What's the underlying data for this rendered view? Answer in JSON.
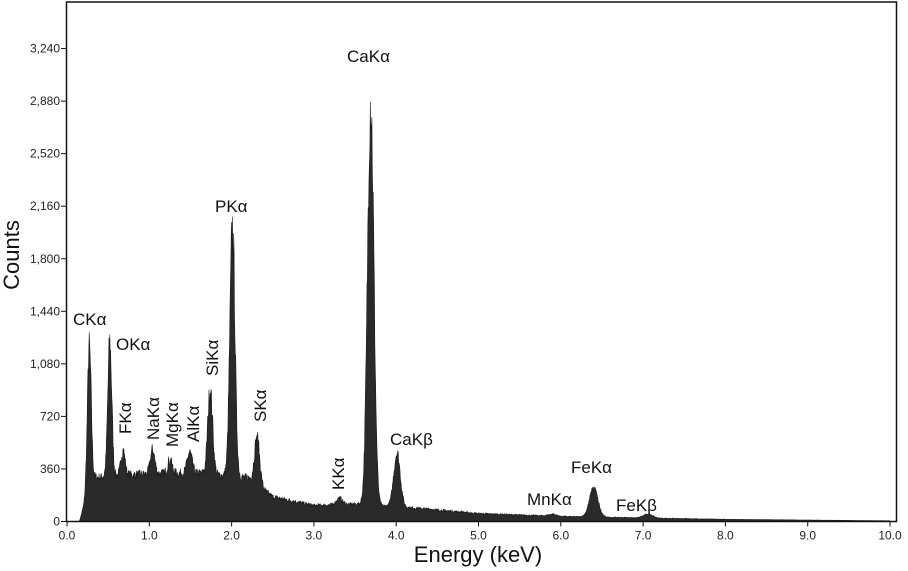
{
  "chart_data": {
    "type": "area",
    "title": "",
    "xlabel": "Energy (keV)",
    "ylabel": "Counts",
    "xlim": [
      0,
      10.08
    ],
    "ylim": [
      0,
      3560
    ],
    "x_ticks": [
      "0.0",
      "1.0",
      "2.0",
      "3.0",
      "4.0",
      "5.0",
      "6.0",
      "7.0",
      "8.0",
      "9.0",
      "10.0"
    ],
    "y_ticks": [
      "0",
      "360",
      "720",
      "1,080",
      "1,440",
      "1,800",
      "2,160",
      "2,520",
      "2,880",
      "3,240"
    ],
    "grid": false,
    "fill_color": "#2a2a2a",
    "peaks": [
      {
        "label": "CKα",
        "energy": 0.27,
        "counts": 1195
      },
      {
        "label": "OKα",
        "energy": 0.52,
        "counts": 1230
      },
      {
        "label": "FKα",
        "energy": 0.68,
        "counts": 490
      },
      {
        "label": "NaKα",
        "energy": 1.04,
        "counts": 490
      },
      {
        "label": "MgKα",
        "energy": 1.25,
        "counts": 420
      },
      {
        "label": "AlKα",
        "energy": 1.49,
        "counts": 475
      },
      {
        "label": "SiKα",
        "energy": 1.74,
        "counts": 900
      },
      {
        "label": "PKα",
        "energy": 2.01,
        "counts": 2000
      },
      {
        "label": "SKα",
        "energy": 2.31,
        "counts": 570
      },
      {
        "label": "KKα",
        "energy": 3.31,
        "counts": 160
      },
      {
        "label": "CaKα",
        "energy": 3.69,
        "counts": 2890
      },
      {
        "label": "CaKβ",
        "energy": 4.01,
        "counts": 470
      },
      {
        "label": "MnKα",
        "energy": 5.9,
        "counts": 50
      },
      {
        "label": "FeKα",
        "energy": 6.4,
        "counts": 230
      },
      {
        "label": "FeKβ",
        "energy": 7.06,
        "counts": 50
      }
    ],
    "background": {
      "energy": [
        0.15,
        0.3,
        0.8,
        1.2,
        1.6,
        2.2,
        2.5,
        3.0,
        3.5,
        4.3,
        5.0,
        6.0,
        7.0,
        8.0,
        9.0,
        10.0
      ],
      "counts": [
        0,
        300,
        320,
        330,
        330,
        300,
        170,
        110,
        120,
        90,
        55,
        35,
        25,
        15,
        10,
        5
      ]
    }
  }
}
